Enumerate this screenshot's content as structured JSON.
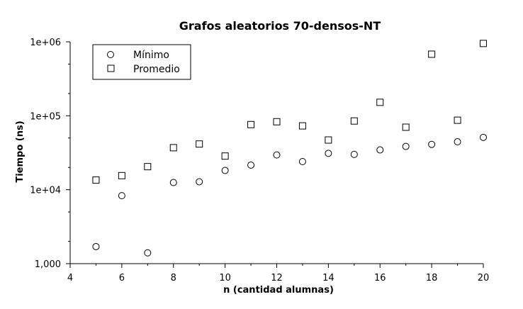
{
  "chart_data": {
    "type": "scatter",
    "title": "Grafos aleatorios 70-densos-NT",
    "xlabel": "n (cantidad alumnas)",
    "ylabel": "Tiempo (ns)",
    "xlim": [
      4,
      20
    ],
    "ylim": [
      1000,
      1000000
    ],
    "yscale": "log",
    "xticks": [
      4,
      6,
      8,
      10,
      12,
      14,
      16,
      18,
      20
    ],
    "xtick_labels": [
      "4",
      "6",
      "8",
      "10",
      "12",
      "14",
      "16",
      "18",
      "20"
    ],
    "yticks": [
      1000,
      10000,
      100000,
      1000000
    ],
    "ytick_labels": [
      "1,000",
      "1e+04",
      "1e+05",
      "1e+06"
    ],
    "grid": false,
    "legend_position": "top-left",
    "series": [
      {
        "name": "Mínimo",
        "marker": "circle",
        "x": [
          5,
          6,
          7,
          8,
          9,
          10,
          11,
          12,
          13,
          14,
          15,
          16,
          17,
          18,
          19,
          20
        ],
        "y": [
          1700,
          8300,
          1400,
          12500,
          12800,
          18200,
          21500,
          29500,
          24000,
          31000,
          30000,
          34500,
          38500,
          41000,
          44500,
          51000
        ]
      },
      {
        "name": "Promedio",
        "marker": "square",
        "x": [
          5,
          6,
          7,
          8,
          9,
          10,
          11,
          12,
          13,
          14,
          15,
          16,
          17,
          18,
          19,
          20
        ],
        "y": [
          13500,
          15500,
          20500,
          37000,
          41500,
          28500,
          76000,
          83000,
          73000,
          47000,
          85000,
          152000,
          70000,
          680000,
          87000,
          950000
        ]
      }
    ]
  }
}
